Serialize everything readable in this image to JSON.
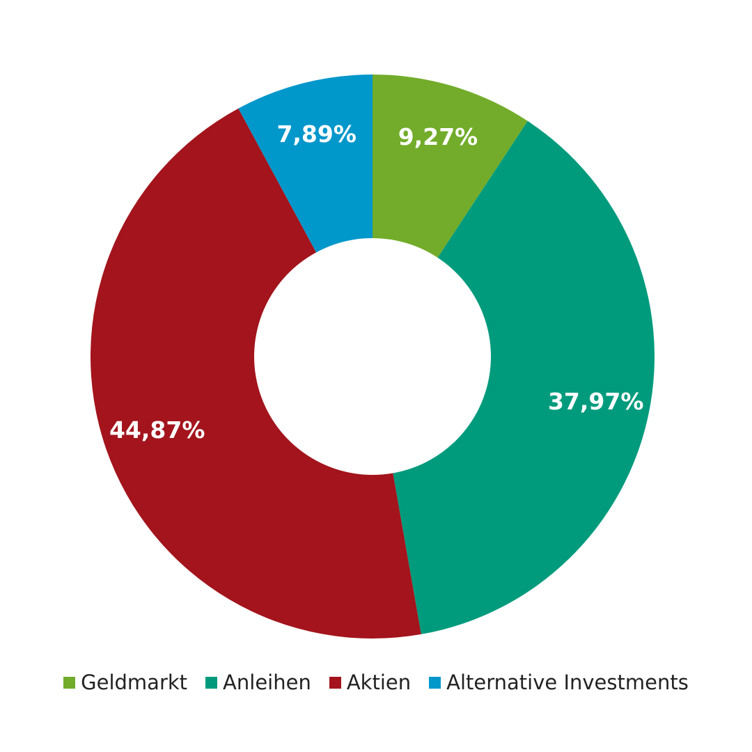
{
  "chart_data": {
    "type": "pie",
    "donut": true,
    "title": "",
    "legend": "bottom",
    "slices": [
      {
        "name": "Geldmarkt",
        "value": 9.27,
        "label": "9,27%",
        "color": "#72ac2a"
      },
      {
        "name": "Anleihen",
        "value": 37.97,
        "label": "37,97%",
        "color": "#009b7d"
      },
      {
        "name": "Aktien",
        "value": 44.87,
        "label": "44,87%",
        "color": "#a3141c"
      },
      {
        "name": "Alternative Investments",
        "value": 7.89,
        "label": "7,89%",
        "color": "#0097cb"
      }
    ]
  }
}
